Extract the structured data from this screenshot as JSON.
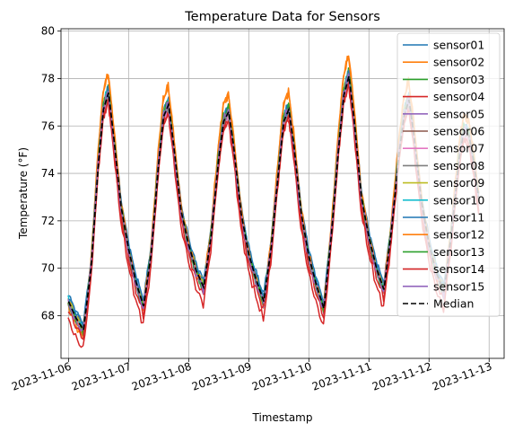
{
  "chart_data": {
    "type": "line",
    "title": "Temperature Data for Sensors",
    "xlabel": "Timestamp",
    "ylabel": "Temperature (°F)",
    "x_ticks": [
      "2023-11-06",
      "2023-11-07",
      "2023-11-08",
      "2023-11-09",
      "2023-11-10",
      "2023-11-11",
      "2023-11-12",
      "2023-11-13"
    ],
    "xlim": [
      "2023-11-05T21:00",
      "2023-11-13T06:00"
    ],
    "ylim": [
      66.2,
      80.1
    ],
    "y_ticks": [
      68,
      70,
      72,
      74,
      76,
      78,
      80
    ],
    "grid": true,
    "legend_position": "upper right",
    "median": {
      "name": "Median",
      "color": "#000000",
      "dash": "dashed",
      "points": [
        [
          "2023-11-06T00:00",
          68.6
        ],
        [
          "2023-11-06T03:00",
          67.9
        ],
        [
          "2023-11-06T06:00",
          67.4
        ],
        [
          "2023-11-06T09:00",
          70.0
        ],
        [
          "2023-11-06T12:00",
          74.5
        ],
        [
          "2023-11-06T14:00",
          76.7
        ],
        [
          "2023-11-06T16:00",
          77.4
        ],
        [
          "2023-11-06T18:00",
          75.6
        ],
        [
          "2023-11-06T21:00",
          72.6
        ],
        [
          "2023-11-07T00:00",
          70.8
        ],
        [
          "2023-11-07T03:00",
          69.4
        ],
        [
          "2023-11-07T06:00",
          68.4
        ],
        [
          "2023-11-07T09:00",
          70.6
        ],
        [
          "2023-11-07T12:00",
          74.4
        ],
        [
          "2023-11-07T14:00",
          76.4
        ],
        [
          "2023-11-07T16:00",
          76.9
        ],
        [
          "2023-11-07T18:00",
          75.2
        ],
        [
          "2023-11-07T21:00",
          72.4
        ],
        [
          "2023-11-08T00:00",
          71.0
        ],
        [
          "2023-11-08T03:00",
          69.9
        ],
        [
          "2023-11-08T06:00",
          69.2
        ],
        [
          "2023-11-08T09:00",
          71.4
        ],
        [
          "2023-11-08T12:00",
          74.6
        ],
        [
          "2023-11-08T14:00",
          76.2
        ],
        [
          "2023-11-08T16:00",
          76.6
        ],
        [
          "2023-11-08T18:00",
          75.1
        ],
        [
          "2023-11-08T21:00",
          72.3
        ],
        [
          "2023-11-09T00:00",
          70.6
        ],
        [
          "2023-11-09T03:00",
          69.5
        ],
        [
          "2023-11-09T06:00",
          68.6
        ],
        [
          "2023-11-09T09:00",
          70.9
        ],
        [
          "2023-11-09T12:00",
          74.2
        ],
        [
          "2023-11-09T14:00",
          76.2
        ],
        [
          "2023-11-09T16:00",
          76.7
        ],
        [
          "2023-11-09T18:00",
          75.2
        ],
        [
          "2023-11-09T21:00",
          72.3
        ],
        [
          "2023-11-10T00:00",
          70.5
        ],
        [
          "2023-11-10T03:00",
          69.3
        ],
        [
          "2023-11-10T06:00",
          68.3
        ],
        [
          "2023-11-10T09:00",
          71.4
        ],
        [
          "2023-11-10T12:00",
          75.2
        ],
        [
          "2023-11-10T14:00",
          77.3
        ],
        [
          "2023-11-10T16:00",
          78.1
        ],
        [
          "2023-11-10T18:00",
          76.4
        ],
        [
          "2023-11-10T21:00",
          73.0
        ],
        [
          "2023-11-11T00:00",
          71.3
        ],
        [
          "2023-11-11T03:00",
          70.0
        ],
        [
          "2023-11-11T06:00",
          69.1
        ],
        [
          "2023-11-11T09:00",
          71.6
        ],
        [
          "2023-11-11T12:00",
          74.8
        ],
        [
          "2023-11-11T14:00",
          76.4
        ],
        [
          "2023-11-11T16:00",
          77.1
        ],
        [
          "2023-11-11T18:00",
          75.6
        ],
        [
          "2023-11-11T21:00",
          72.8
        ],
        [
          "2023-11-12T00:00",
          71.0
        ],
        [
          "2023-11-12T03:00",
          69.8
        ],
        [
          "2023-11-12T06:00",
          69.0
        ],
        [
          "2023-11-12T09:00",
          71.5
        ],
        [
          "2023-11-12T12:00",
          74.6
        ],
        [
          "2023-11-12T14:00",
          75.8
        ],
        [
          "2023-11-12T16:00",
          75.6
        ],
        [
          "2023-11-12T18:00",
          74.4
        ],
        [
          "2023-11-12T20:00",
          72.8
        ]
      ]
    },
    "series": [
      {
        "name": "sensor01",
        "color": "#1f77b4",
        "offset": 0.25,
        "amp": 1.0,
        "lag": 0
      },
      {
        "name": "sensor02",
        "color": "#ff7f0e",
        "offset": 0.3,
        "amp": 1.12,
        "lag": -0.4
      },
      {
        "name": "sensor03",
        "color": "#2ca02c",
        "offset": 0.05,
        "amp": 1.02,
        "lag": -0.5
      },
      {
        "name": "sensor04",
        "color": "#d62728",
        "offset": -0.55,
        "amp": 1.05,
        "lag": -0.5
      },
      {
        "name": "sensor05",
        "color": "#9467bd",
        "offset": -0.1,
        "amp": 1.0,
        "lag": -0.3
      },
      {
        "name": "sensor06",
        "color": "#8c564b",
        "offset": 0.0,
        "amp": 1.0,
        "lag": -0.2
      },
      {
        "name": "sensor07",
        "color": "#e377c2",
        "offset": -0.05,
        "amp": 0.98,
        "lag": -0.4
      },
      {
        "name": "sensor08",
        "color": "#7f7f7f",
        "offset": 0.0,
        "amp": 0.97,
        "lag": -0.3
      },
      {
        "name": "sensor09",
        "color": "#bcbd22",
        "offset": 0.1,
        "amp": 1.0,
        "lag": -0.3
      },
      {
        "name": "sensor10",
        "color": "#17becf",
        "offset": 0.15,
        "amp": 1.01,
        "lag": -0.4
      },
      {
        "name": "sensor11",
        "color": "#1f77b4",
        "offset": 0.2,
        "amp": 0.99,
        "lag": -0.2
      },
      {
        "name": "sensor12",
        "color": "#ff7f0e",
        "offset": 0.35,
        "amp": 1.1,
        "lag": -0.5
      },
      {
        "name": "sensor13",
        "color": "#2ca02c",
        "offset": 0.05,
        "amp": 1.03,
        "lag": -0.4
      },
      {
        "name": "sensor14",
        "color": "#d62728",
        "offset": -0.35,
        "amp": 1.0,
        "lag": -0.3
      },
      {
        "name": "sensor15",
        "color": "#9467bd",
        "offset": 0.0,
        "amp": 1.02,
        "lag": -0.4
      }
    ]
  }
}
